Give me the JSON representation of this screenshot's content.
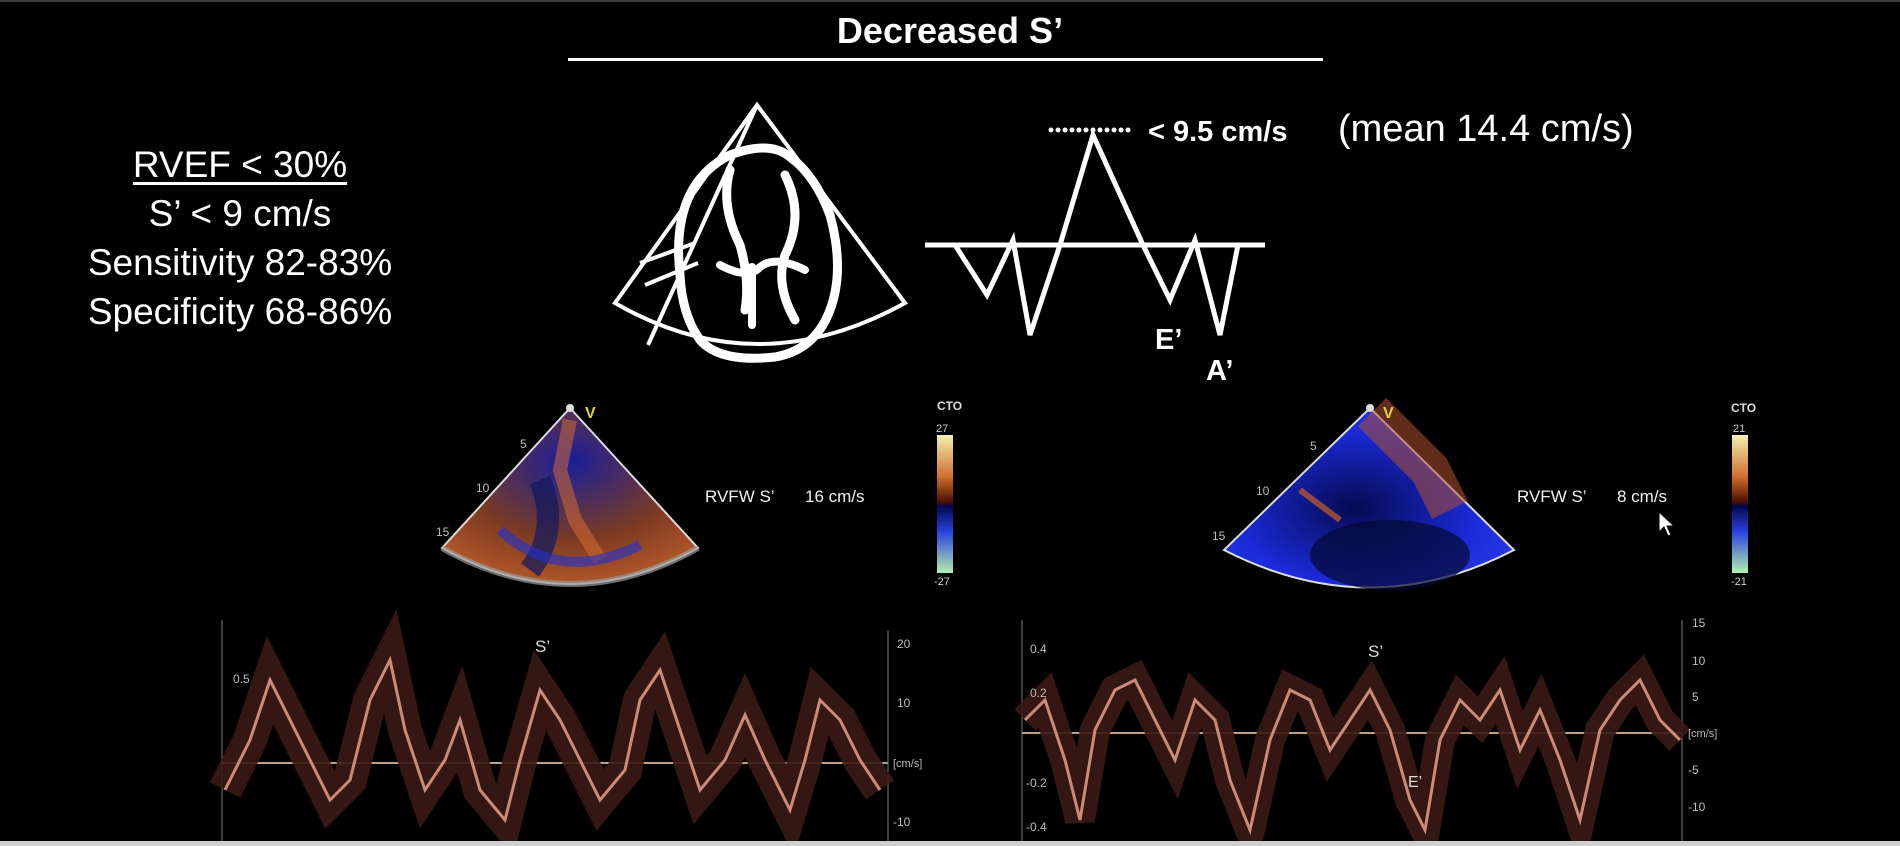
{
  "slide": {
    "title": "Decreased S’",
    "criteria": [
      "RVEF < 30%",
      "S’ < 9 cm/s",
      "Sensitivity 82-83%",
      "Specificity 68-86%"
    ],
    "threshold_label": "< 9.5 cm/s",
    "mean_label": "(mean 14.4 cm/s)",
    "wave_labels": {
      "e_prime": "E’",
      "a_prime": "A’"
    }
  },
  "left_echo": {
    "measurement_label": "RVFW S’",
    "measurement_value": "16 cm/s",
    "colorbar": {
      "title": "CTO",
      "max": "27",
      "min": "-27"
    },
    "depth_ticks": [
      "5",
      "10",
      "15"
    ],
    "probe_marker": "V",
    "doppler": {
      "peak_label": "S’",
      "scale_left": [
        "0.5"
      ],
      "scale_right": [
        "20",
        "10",
        "[cm/s]",
        "-10"
      ]
    }
  },
  "right_echo": {
    "measurement_label": "RVFW S’",
    "measurement_value": "8 cm/s",
    "colorbar": {
      "title": "CTO",
      "max": "21",
      "min": "-21"
    },
    "depth_ticks": [
      "5",
      "10",
      "15"
    ],
    "probe_marker": "V",
    "doppler": {
      "peak_label": "S’",
      "trough_label": "E’",
      "scale_left": [
        "0.4",
        "0.2",
        "-0.2",
        "-0.4"
      ],
      "scale_right": [
        "15",
        "10",
        "5",
        "[cm/s]",
        "-5",
        "-10"
      ]
    }
  },
  "colors": {
    "background": "#000000",
    "doppler": "#e8a08a",
    "color_blue": "#1a2ad8",
    "color_orange": "#c8602a"
  }
}
